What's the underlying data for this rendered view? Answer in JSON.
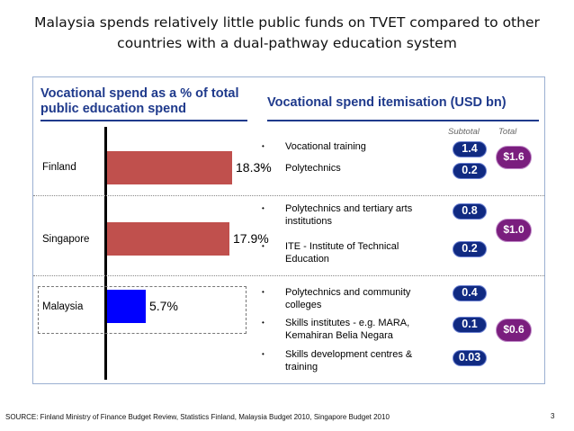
{
  "title": "Malaysia spends relatively little public funds on TVET compared to other countries with a dual-pathway education system",
  "chart_data": {
    "type": "bar",
    "title": "Vocational spend as a % of total public education spend",
    "categories": [
      "Finland",
      "Singapore",
      "Malaysia"
    ],
    "values": [
      18.3,
      17.9,
      5.7
    ],
    "value_labels": [
      "18.3%",
      "17.9%",
      "5.7%"
    ],
    "bar_colors": [
      "#c0504d",
      "#c0504d",
      "#0000ff"
    ],
    "orientation": "horizontal",
    "xlim": [
      0,
      20
    ]
  },
  "itemisation": {
    "title": "Vocational spend itemisation (USD bn)",
    "subtotal_label": "Subtotal",
    "total_label": "Total",
    "bullet": "•",
    "groups": [
      {
        "country": "Finland",
        "total": "$1.6",
        "items": [
          {
            "label": "Vocational training",
            "value": "1.4"
          },
          {
            "label": "Polytechnics",
            "value": "0.2"
          }
        ]
      },
      {
        "country": "Singapore",
        "total": "$1.0",
        "items": [
          {
            "label": "Polytechnics and  tertiary arts institutions",
            "value": "0.8"
          },
          {
            "label": "ITE - Institute of Technical Education",
            "value": "0.2"
          }
        ]
      },
      {
        "country": "Malaysia",
        "total": "$0.6",
        "items": [
          {
            "label": "Polytechnics and community colleges",
            "value": "0.4"
          },
          {
            "label": "Skills institutes - e.g. MARA, Kemahiran Belia Negara",
            "value": "0.1"
          },
          {
            "label": "Skills development centres & training",
            "value": "0.03"
          }
        ]
      }
    ]
  },
  "colors": {
    "header": "#1f3a8c",
    "subtotal_pill": "#102a82",
    "total_pill": "#7a1e7e"
  },
  "source": "SOURCE: Finland Ministry of Finance Budget Review,  Statistics Finland, Malaysia Budget 2010, Singapore Budget 2010",
  "page_number": "3"
}
